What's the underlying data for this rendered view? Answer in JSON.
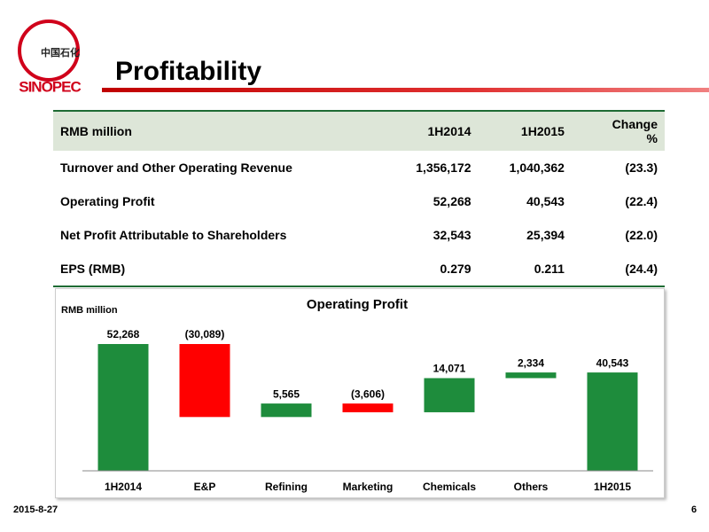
{
  "header": {
    "title": "Profitability",
    "logo": {
      "chinese": "中国石化",
      "english": "SINOPEC"
    }
  },
  "table": {
    "columns": [
      "RMB million",
      "1H2014",
      "1H2015",
      "Change %"
    ],
    "rows": [
      [
        "Turnover and Other Operating Revenue",
        "1,356,172",
        "1,040,362",
        "(23.3)"
      ],
      [
        "Operating Profit",
        "52,268",
        "40,543",
        "(22.4)"
      ],
      [
        "Net Profit Attributable to Shareholders",
        "32,543",
        "25,394",
        "(22.0)"
      ],
      [
        "EPS (RMB)",
        "0.279",
        "0.211",
        "(24.4)"
      ]
    ]
  },
  "chart_data": {
    "type": "waterfall",
    "title": "Operating Profit",
    "y_label": "RMB million",
    "categories": [
      "1H2014",
      "E&P",
      "Refining",
      "Marketing",
      "Chemicals",
      "Others",
      "1H2015"
    ],
    "values": [
      52268,
      -30089,
      5565,
      -3606,
      14071,
      2334,
      40543
    ],
    "value_labels": [
      "52,268",
      "(30,089)",
      "5,565",
      "(3,606)",
      "14,071",
      "2,334",
      "40,543"
    ],
    "measure": [
      "total",
      "relative",
      "relative",
      "relative",
      "relative",
      "relative",
      "total"
    ],
    "increase_color": "#1e8c3c",
    "decrease_color": "#ff0000",
    "total_color": "#1e8c3c"
  },
  "footer": {
    "date": "2015-8-27",
    "page": "6"
  }
}
